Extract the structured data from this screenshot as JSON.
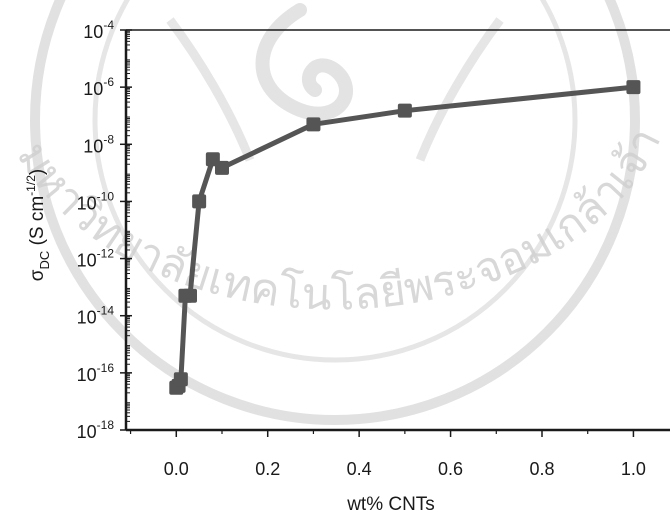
{
  "watermark": {
    "text": "มหาวิทยาลัยเทคโนโลยีพระจอมเกล้าเจ้าคุณทหารลาดกระบัง",
    "color": "#c8c8c8"
  },
  "chart_data": {
    "type": "line",
    "xlabel": "wt% CNTs",
    "ylabel": "σ_DC (S cm^-1/2)",
    "yscale": "log",
    "xlim": [
      -0.11,
      1.08
    ],
    "ylim": [
      1e-18,
      0.0001
    ],
    "x_ticks": [
      0.0,
      0.2,
      0.4,
      0.6,
      0.8,
      1.0
    ],
    "x_tick_labels": [
      "0.0",
      "0.2",
      "0.4",
      "0.6",
      "0.8",
      "1.0"
    ],
    "y_tick_exponents": [
      -18,
      -16,
      -14,
      -12,
      -10,
      -8,
      -6,
      -4
    ],
    "grid": false,
    "series": [
      {
        "color": "#555555",
        "x": [
          0.0,
          0.005,
          0.01,
          0.02,
          0.03,
          0.05,
          0.08,
          0.1,
          0.3,
          0.5,
          1.0
        ],
        "y": [
          3e-17,
          3.5e-17,
          6e-17,
          5e-14,
          5e-14,
          1e-10,
          3e-09,
          1.5e-09,
          5e-08,
          1.5e-07,
          1e-06
        ]
      }
    ]
  }
}
